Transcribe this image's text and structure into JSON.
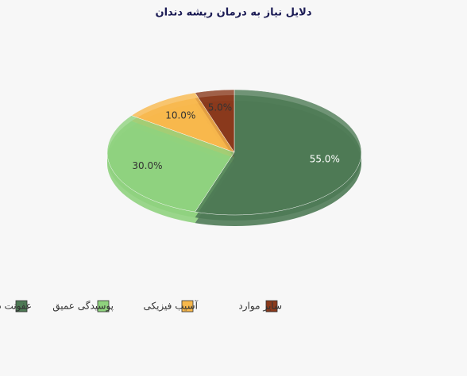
{
  "chart_data": {
    "type": "pie",
    "title": "دلایل نیاز به درمان ریشه دندان",
    "categories": [
      "عفونت دندان",
      "پوسیدگی عمیق",
      "آسیب فیزیکی",
      "سایر موارد"
    ],
    "values": [
      55,
      30,
      10,
      5
    ],
    "value_labels": [
      "55.0%",
      "30.0%",
      "10.0%",
      "5.0%"
    ],
    "colors": [
      "#4e7a55",
      "#8fd27e",
      "#f7b84c",
      "#8a3a1c"
    ],
    "legend": "bottom-left"
  }
}
